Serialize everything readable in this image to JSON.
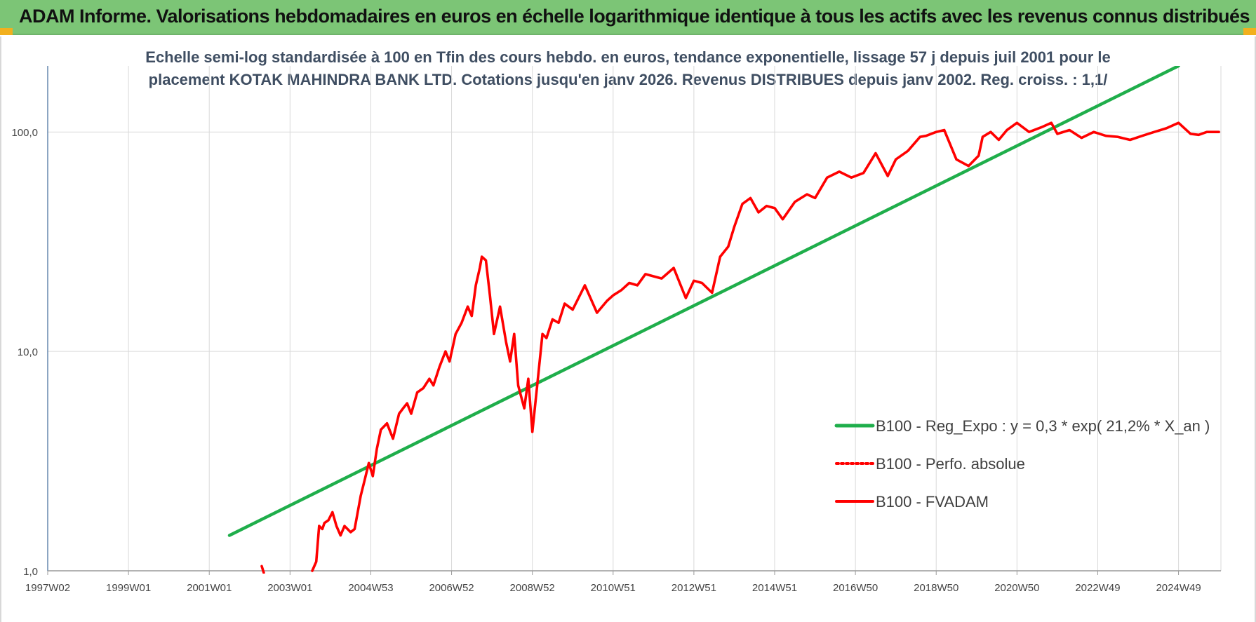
{
  "banner": {
    "title": "ADAM Informe. Valorisations hebdomadaires en euros en échelle logarithmique identique à tous les actifs avec les revenus connus distribués",
    "background": "#7cc576",
    "corner_color": "#f2b01e"
  },
  "chart_data": {
    "type": "line",
    "title_lines": [
      "Echelle semi-log standardisée à 100 en Tfin des cours hebdo. en euros, tendance exponentielle, lissage 57 j depuis juil 2001 pour le",
      "placement KOTAK MAHINDRA BANK LTD. Cotations jusqu'en janv 2026. Revenus DISTRIBUES depuis janv 2002. Reg. croiss. : 1,1/"
    ],
    "xlabel": "",
    "ylabel": "",
    "y_scale": "log",
    "ylim": [
      1,
      200
    ],
    "y_ticks": [
      {
        "value": 1,
        "label": "1,0"
      },
      {
        "value": 10,
        "label": "10,0"
      },
      {
        "value": 100,
        "label": "100,0"
      }
    ],
    "xlim": [
      1997.0,
      2026.05
    ],
    "x_ticks": [
      {
        "value": 1997.0,
        "label": "1997W02"
      },
      {
        "value": 1999.0,
        "label": "1999W01"
      },
      {
        "value": 2001.0,
        "label": "2001W01"
      },
      {
        "value": 2003.0,
        "label": "2003W01"
      },
      {
        "value": 2005.0,
        "label": "2004W53"
      },
      {
        "value": 2007.0,
        "label": "2006W52"
      },
      {
        "value": 2009.0,
        "label": "2008W52"
      },
      {
        "value": 2011.0,
        "label": "2010W51"
      },
      {
        "value": 2013.0,
        "label": "2012W51"
      },
      {
        "value": 2015.0,
        "label": "2014W51"
      },
      {
        "value": 2017.0,
        "label": "2016W50"
      },
      {
        "value": 2019.0,
        "label": "2018W50"
      },
      {
        "value": 2021.0,
        "label": "2020W50"
      },
      {
        "value": 2023.0,
        "label": "2022W49"
      },
      {
        "value": 2025.0,
        "label": "2024W49"
      }
    ],
    "grid": true,
    "legend_position": "bottom-right",
    "series": [
      {
        "name": "B100 - Reg_Expo : y = 0,3 * exp( 21,2% *  X_an )",
        "color": "#1fae4b",
        "style": "solid",
        "x": [
          2001.5,
          2025.0
        ],
        "y": [
          1.45,
          200
        ]
      },
      {
        "name": "B100 - Perfo. absolue",
        "color": "#ff0000",
        "style": "dotted",
        "x": [],
        "y": []
      },
      {
        "name": "B100 - FVADAM",
        "color": "#ff0000",
        "style": "solid",
        "segments": [
          {
            "x": [
              2002.3,
              2002.35
            ],
            "y": [
              1.05,
              0.98
            ]
          },
          {
            "x": [
              2003.55,
              2003.65,
              2003.72,
              2003.8,
              2003.85,
              2003.95,
              2004.05,
              2004.15,
              2004.25,
              2004.35,
              2004.5,
              2004.6,
              2004.75,
              2004.85,
              2004.95,
              2005.05,
              2005.15,
              2005.25,
              2005.4,
              2005.55,
              2005.7,
              2005.8,
              2005.9,
              2006.0,
              2006.15,
              2006.3,
              2006.45,
              2006.55,
              2006.7,
              2006.85,
              2006.95,
              2007.1,
              2007.25,
              2007.4,
              2007.5,
              2007.6,
              2007.7,
              2007.75,
              2007.85,
              2007.95,
              2008.05,
              2008.2,
              2008.35,
              2008.45,
              2008.55,
              2008.65,
              2008.8,
              2008.9,
              2009.0,
              2009.12,
              2009.25,
              2009.35,
              2009.5,
              2009.65,
              2009.8,
              2010.0,
              2010.3,
              2010.6,
              2010.85,
              2011.0,
              2011.2,
              2011.4,
              2011.6,
              2011.8,
              2012.0,
              2012.2,
              2012.5,
              2012.8,
              2013.0,
              2013.2,
              2013.45,
              2013.65,
              2013.85,
              2014.0,
              2014.2,
              2014.4,
              2014.6,
              2014.8,
              2015.0,
              2015.2,
              2015.5,
              2015.8,
              2016.0,
              2016.3,
              2016.6,
              2016.9,
              2017.2,
              2017.5,
              2017.8,
              2018.0,
              2018.3,
              2018.6,
              2018.75,
              2019.0,
              2019.2,
              2019.5,
              2019.8,
              2020.05,
              2020.15,
              2020.35,
              2020.55,
              2020.75,
              2021.0,
              2021.3,
              2021.6,
              2021.85,
              2022.0,
              2022.3,
              2022.6,
              2022.9,
              2023.2,
              2023.5,
              2023.8,
              2024.1,
              2024.4,
              2024.7,
              2025.0,
              2025.3,
              2025.5,
              2025.7,
              2026.0
            ],
            "y": [
              1.0,
              1.1,
              1.6,
              1.55,
              1.65,
              1.7,
              1.85,
              1.6,
              1.45,
              1.6,
              1.5,
              1.55,
              2.2,
              2.6,
              3.1,
              2.7,
              3.6,
              4.4,
              4.7,
              4.0,
              5.2,
              5.5,
              5.8,
              5.2,
              6.5,
              6.8,
              7.5,
              7.0,
              8.5,
              10.0,
              9.0,
              12.0,
              13.5,
              16.0,
              14.5,
              20.0,
              24.0,
              27.0,
              26.0,
              18.0,
              12.0,
              16.0,
              11.0,
              9.0,
              12.0,
              7.0,
              5.5,
              7.5,
              4.3,
              7.0,
              12.0,
              11.5,
              14.0,
              13.5,
              16.5,
              15.5,
              20.0,
              15.0,
              17.0,
              18.0,
              19.0,
              20.5,
              20.0,
              22.5,
              22.0,
              21.5,
              24.0,
              17.5,
              21.0,
              20.5,
              18.5,
              27.0,
              30.0,
              37.0,
              47.0,
              50.0,
              43.0,
              46.0,
              45.0,
              40.0,
              48.0,
              52.0,
              50.0,
              62.0,
              66.0,
              62.0,
              65.0,
              80.0,
              63.0,
              75.0,
              82.0,
              95.0,
              96.0,
              100.0,
              102.0,
              75.0,
              70.0,
              78.0,
              95.0,
              100.0,
              92.0,
              102.0,
              110.0,
              100.0,
              105.0,
              110.0,
              98.0,
              102.0,
              94.0,
              100.0,
              96.0,
              95.0,
              92.0,
              96.0,
              100.0,
              104.0,
              110.0,
              98.0,
              97.0,
              100.0,
              100.0
            ]
          }
        ]
      }
    ]
  }
}
